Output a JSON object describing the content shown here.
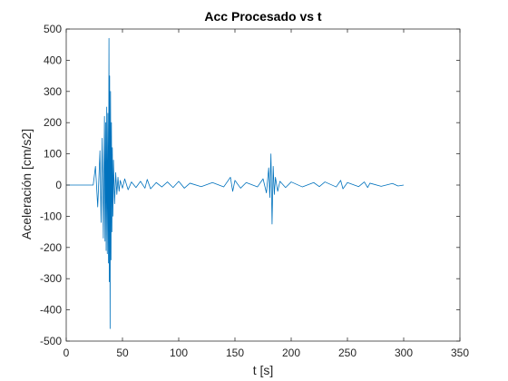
{
  "chart_data": {
    "type": "line",
    "title": "Acc Procesado vs t",
    "xlabel": "t [s]",
    "ylabel": "Aceleración [cm/s2]",
    "xlim": [
      0,
      350
    ],
    "ylim": [
      -500,
      500
    ],
    "xticks": [
      0,
      50,
      100,
      150,
      200,
      250,
      300,
      350
    ],
    "yticks": [
      500,
      400,
      300,
      200,
      100,
      0,
      -100,
      -200,
      -300,
      -400,
      -500
    ],
    "grid": false,
    "line_color": "#0072BD",
    "series": [
      {
        "x": [
          0,
          24,
          26,
          28,
          30,
          31,
          32,
          33,
          34,
          34.5,
          35,
          35.5,
          36,
          36.5,
          37,
          37.5,
          38,
          38.3,
          38.6,
          39,
          39.4,
          39.8,
          40.2,
          40.6,
          41,
          41.5,
          42,
          43,
          44,
          45,
          46,
          47,
          48,
          50,
          52,
          55,
          58,
          62,
          66,
          70,
          72,
          75,
          80,
          85,
          90,
          95,
          100,
          105,
          110,
          120,
          130,
          140,
          146,
          148,
          150,
          155,
          160,
          170,
          175,
          178,
          180,
          181,
          182,
          183,
          184,
          185,
          186,
          188,
          190,
          195,
          200,
          210,
          220,
          225,
          230,
          240,
          244,
          246,
          250,
          260,
          265,
          268,
          270,
          280,
          290,
          295,
          300
        ],
        "y": [
          0,
          0,
          60,
          -70,
          110,
          -120,
          150,
          -170,
          220,
          -180,
          200,
          -210,
          250,
          -220,
          230,
          -250,
          470,
          -310,
          350,
          -460,
          300,
          -240,
          200,
          -150,
          120,
          -100,
          80,
          -60,
          40,
          -30,
          25,
          -20,
          15,
          -10,
          20,
          -15,
          10,
          -8,
          12,
          -10,
          18,
          -12,
          8,
          -6,
          10,
          -8,
          12,
          -10,
          6,
          -5,
          8,
          -6,
          25,
          -20,
          15,
          -10,
          8,
          -6,
          20,
          -25,
          55,
          -40,
          100,
          -125,
          60,
          -30,
          25,
          -20,
          12,
          -8,
          10,
          -6,
          8,
          -5,
          10,
          -6,
          15,
          -12,
          8,
          -5,
          10,
          -8,
          6,
          -4,
          5,
          -3,
          0
        ]
      }
    ]
  }
}
